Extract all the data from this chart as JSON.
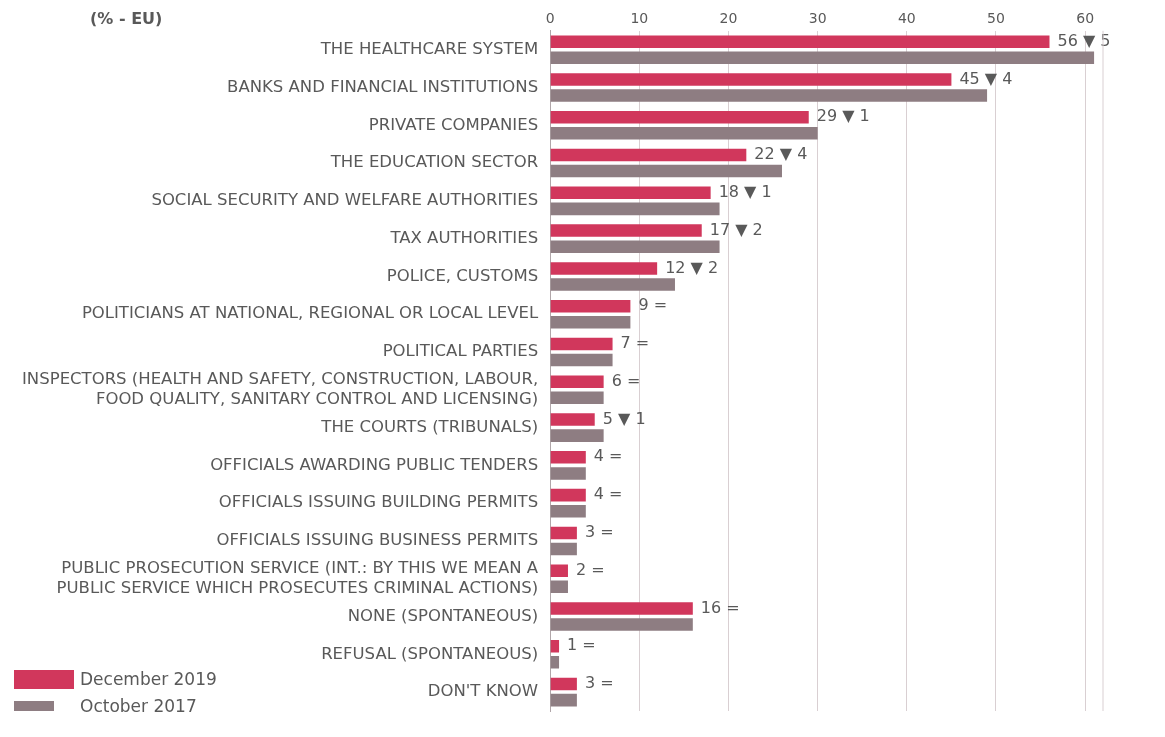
{
  "chart_data": {
    "type": "bar",
    "orientation": "horizontal",
    "annotations": [
      "(% - EU)"
    ],
    "categories": [
      "THE HEALTHCARE SYSTEM",
      "BANKS AND FINANCIAL INSTITUTIONS",
      "PRIVATE COMPANIES",
      "THE EDUCATION SECTOR",
      "SOCIAL SECURITY AND WELFARE AUTHORITIES",
      "TAX AUTHORITIES",
      "POLICE, CUSTOMS",
      "POLITICIANS AT NATIONAL, REGIONAL OR LOCAL LEVEL",
      "POLITICAL PARTIES",
      "INSPECTORS (HEALTH AND SAFETY, CONSTRUCTION, LABOUR,\nFOOD QUALITY, SANITARY CONTROL AND LICENSING)",
      "THE COURTS (TRIBUNALS)",
      "OFFICIALS AWARDING PUBLIC TENDERS",
      "OFFICIALS ISSUING BUILDING PERMITS",
      "OFFICIALS ISSUING BUSINESS PERMITS",
      "PUBLIC PROSECUTION SERVICE (INT.: BY THIS WE MEAN A\nPUBLIC SERVICE WHICH PROSECUTES CRIMINAL ACTIONS)",
      "NONE (SPONTANEOUS)",
      "REFUSAL (SPONTANEOUS)",
      "DON'T KNOW"
    ],
    "series": [
      {
        "name": "December 2019",
        "color": "#d1375c",
        "values": [
          56,
          45,
          29,
          22,
          18,
          17,
          12,
          9,
          7,
          6,
          5,
          4,
          4,
          3,
          2,
          16,
          1,
          3
        ],
        "value_labels": [
          "56 ▼ 5",
          "45 ▼ 4",
          "29 ▼ 1",
          "22 ▼ 4",
          "18 ▼ 1",
          "17 ▼ 2",
          "12 ▼ 2",
          "9 =",
          "7 =",
          "6 =",
          "5 ▼ 1",
          "4 =",
          "4 =",
          "3 =",
          "2 =",
          "16 =",
          "1 =",
          "3 ="
        ]
      },
      {
        "name": "October 2017",
        "color": "#8e7d82",
        "values": [
          61,
          49,
          30,
          26,
          19,
          19,
          14,
          9,
          7,
          6,
          6,
          4,
          4,
          3,
          2,
          16,
          1,
          3
        ]
      }
    ],
    "xlim": [
      0,
      62
    ],
    "xticks": [
      0,
      10,
      20,
      30,
      40,
      50,
      60
    ],
    "grid": "x",
    "legend": "bottom left"
  }
}
